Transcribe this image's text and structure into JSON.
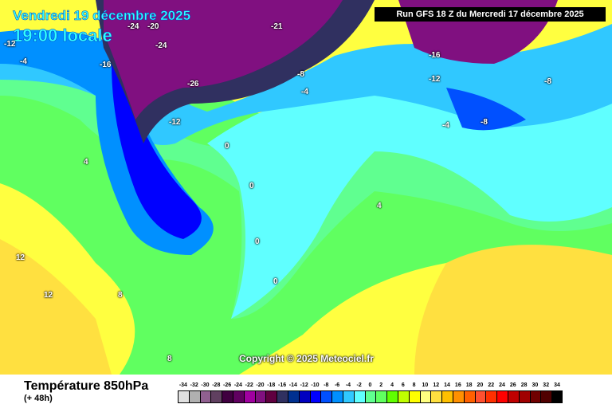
{
  "header": {
    "date": "Vendredi 19 décembre 2025",
    "time": "19:00 locale",
    "run": "Run GFS 18 Z du Mercredi 17 décembre 2025"
  },
  "map": {
    "copyright": "Copyright © 2025 Meteociel.fr",
    "labels": [
      "-24",
      "-20",
      "-12",
      "-24",
      "-16",
      "-21",
      "-26",
      "-12",
      "-8",
      "-4",
      "-12",
      "-16",
      "-8",
      "-4",
      "-8",
      "-4",
      "0",
      "0",
      "0",
      "0",
      "4",
      "4",
      "8",
      "12",
      "12",
      "8"
    ]
  },
  "footer": {
    "title": "Température 850hPa",
    "subtitle": "(+ 48h)"
  },
  "legend": {
    "labels": [
      "-34",
      "-32",
      "-30",
      "-28",
      "-26",
      "-24",
      "-22",
      "-20",
      "-18",
      "-16",
      "-14",
      "-12",
      "-10",
      "-8",
      "-6",
      "-4",
      "-2",
      "0",
      "2",
      "4",
      "6",
      "8",
      "10",
      "12",
      "14",
      "16",
      "18",
      "20",
      "22",
      "24",
      "26",
      "28",
      "30",
      "32",
      "34"
    ],
    "colors": [
      "#e0e0e0",
      "#b0b0b0",
      "#906090",
      "#604060",
      "#400040",
      "#600060",
      "#a000a0",
      "#801080",
      "#600040",
      "#303060",
      "#003090",
      "#0000c0",
      "#0000ff",
      "#0050ff",
      "#0090ff",
      "#30c8ff",
      "#60ffff",
      "#60ff90",
      "#60ff60",
      "#60ff00",
      "#c0ff00",
      "#ffff00",
      "#ffff80",
      "#ffe040",
      "#ffc000",
      "#ff9000",
      "#ff6000",
      "#ff5030",
      "#ff3000",
      "#ff0000",
      "#c00000",
      "#a00000",
      "#700000",
      "#500000",
      "#000000"
    ]
  }
}
